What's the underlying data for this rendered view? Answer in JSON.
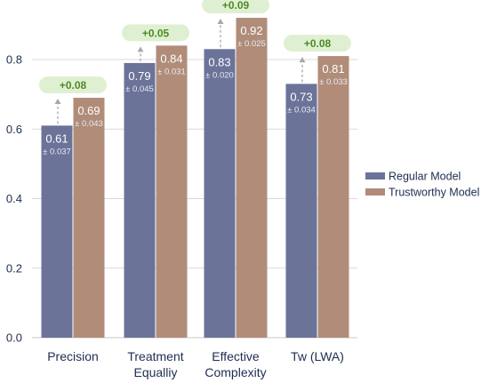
{
  "chart_data": {
    "type": "bar",
    "categories": [
      "Precision",
      "Treatment\nEqualliy",
      "Effective\nComplexity",
      "Tw (LWA)"
    ],
    "series": [
      {
        "name": "Regular Model",
        "values": [
          0.61,
          0.79,
          0.83,
          0.73
        ],
        "err": [
          "± 0.037",
          "± 0.045",
          "± 0.020",
          "± 0.034"
        ],
        "color": "#6b7399"
      },
      {
        "name": "Trustworthy Model",
        "values": [
          0.69,
          0.84,
          0.92,
          0.81
        ],
        "err": [
          "± 0.043",
          "± 0.031",
          "± 0.025",
          "± 0.033"
        ],
        "color": "#b08c79"
      }
    ],
    "improvements": [
      "+0.08",
      "+0.05",
      "+0.09",
      "+0.08"
    ],
    "yticks": [
      "0.0",
      "0.2",
      "0.4",
      "0.6",
      "0.8"
    ],
    "ylim": [
      0,
      0.94
    ],
    "grid": true,
    "legend_position": "right",
    "colors": {
      "badge_bg": "#dff0d2",
      "badge_text": "#4e8a22",
      "grid": "#d9d9d9",
      "arrow": "#a8a8a8"
    }
  }
}
